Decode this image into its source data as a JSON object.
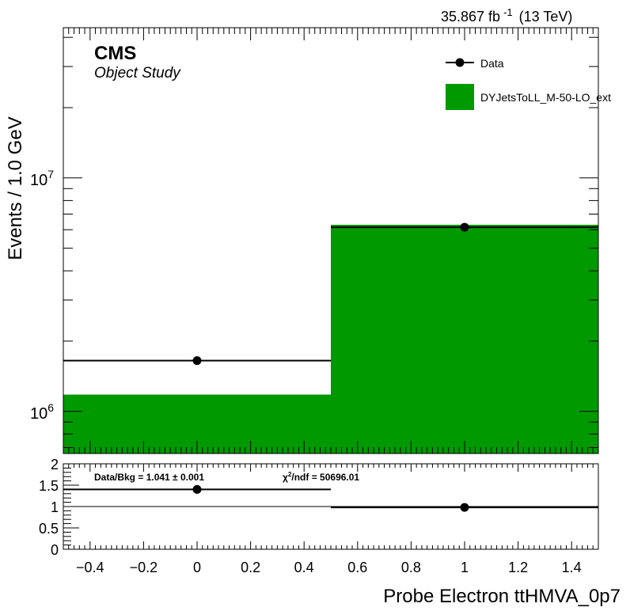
{
  "header": {
    "lumi_value": "35.867 fb",
    "lumi_exponent": "-1",
    "energy": "(13 TeV)"
  },
  "labels": {
    "experiment": "CMS",
    "study": "Object Study"
  },
  "ratio_panel": {
    "data_bkg_text": "Data/Bkg = 1.041 ± 0.001",
    "chi2_symbol": "χ",
    "chi2_sup": "2",
    "chi2_text": "/ndf = 50696.01"
  },
  "colors": {
    "mc_fill": "#009900",
    "data": "#000000",
    "axis": "#000000"
  },
  "chart_data": [
    {
      "type": "bar",
      "name": "main",
      "xlabel": "Probe Electron ttHMVA_0p7",
      "ylabel": "Events / 1.0 GeV",
      "xlim": [
        -0.5,
        1.5
      ],
      "ylim": [
        660000,
        44000000
      ],
      "yscale": "log",
      "y_tick_labels": [
        {
          "value": 1000000,
          "base": "10",
          "exp": "6"
        },
        {
          "value": 10000000,
          "base": "10",
          "exp": "7"
        }
      ],
      "bin_edges": [
        -0.5,
        0.5,
        1.5
      ],
      "series": [
        {
          "name": "Data",
          "kind": "points",
          "x": [
            0,
            1
          ],
          "y": [
            1650000,
            6150000
          ],
          "x_err": [
            0.5,
            0.5
          ]
        },
        {
          "name": "DYJetsToLL_M-50-LO_ext",
          "kind": "histogram",
          "values": [
            1180000,
            6300000
          ]
        }
      ],
      "legend": {
        "position": "top-right",
        "entries": [
          "Data",
          "DYJetsToLL_M-50-LO_ext"
        ]
      }
    },
    {
      "type": "scatter",
      "name": "ratio",
      "xlabel": "Probe Electron ttHMVA_0p7",
      "ylabel": "",
      "xlim": [
        -0.5,
        1.5
      ],
      "ylim": [
        0,
        2
      ],
      "x_ticks": [
        -0.4,
        -0.2,
        0,
        0.2,
        0.4,
        0.6,
        0.8,
        1,
        1.2,
        1.4
      ],
      "x_tick_labels": [
        "−0.4",
        "−0.2",
        "0",
        "0.2",
        "0.4",
        "0.6",
        "0.8",
        "1",
        "1.2",
        "1.4"
      ],
      "y_ticks": [
        0,
        0.5,
        1,
        1.5,
        2
      ],
      "y_tick_labels": [
        "0",
        "0.5",
        "1",
        "1.5",
        "2"
      ],
      "reference_line": 1,
      "series": [
        {
          "name": "Data/Bkg",
          "x": [
            0,
            1
          ],
          "y": [
            1.4,
            0.98
          ],
          "x_err": [
            0.5,
            0.5
          ]
        }
      ]
    }
  ]
}
